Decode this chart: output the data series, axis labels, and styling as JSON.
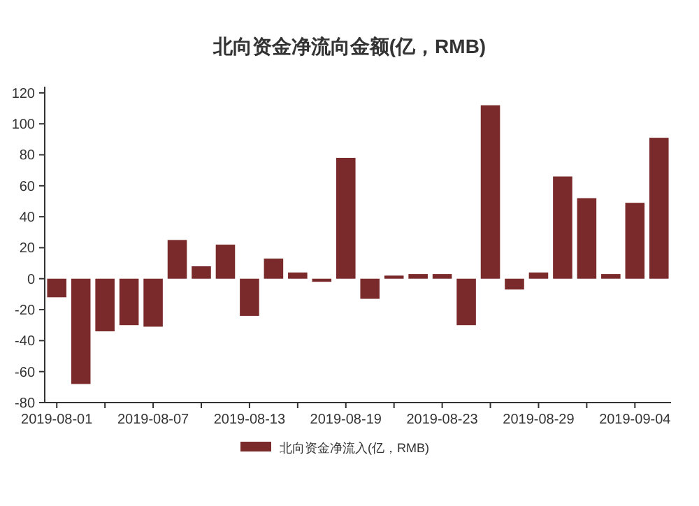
{
  "chart_data": {
    "type": "bar",
    "title": "北向资金净流向金额(亿，RMB)",
    "categories": [
      "2019-08-01",
      null,
      null,
      null,
      "2019-08-07",
      null,
      null,
      null,
      "2019-08-13",
      null,
      null,
      null,
      "2019-08-19",
      null,
      null,
      null,
      "2019-08-23",
      null,
      null,
      null,
      "2019-08-29",
      null,
      null,
      null,
      "2019-09-04",
      null
    ],
    "series": [
      {
        "name": "北向资金净流入(亿，RMB)",
        "color": "#7a2a2a",
        "values": [
          -12,
          -68,
          -34,
          -30,
          -31,
          25,
          8,
          22,
          -24,
          13,
          4,
          -2,
          78,
          -13,
          2,
          3,
          3,
          -30,
          112,
          -7,
          4,
          66,
          52,
          3,
          49,
          91
        ]
      }
    ],
    "ylim": [
      -80,
      124
    ],
    "yticks": [
      -80,
      -60,
      -40,
      -20,
      0,
      20,
      40,
      60,
      80,
      100,
      120
    ],
    "grid": false,
    "legend": "bottom"
  }
}
